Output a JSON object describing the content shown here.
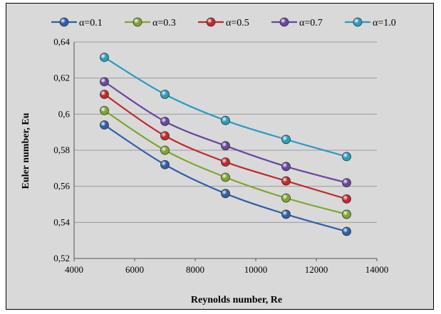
{
  "chart_data": {
    "type": "line",
    "xlabel": "Reynolds number, Re",
    "ylabel": "Euler number, Eu",
    "xlim": [
      4000,
      14000
    ],
    "ylim": [
      0.52,
      0.64
    ],
    "xticks": [
      "4000",
      "6000",
      "8000",
      "10000",
      "12000",
      "14000"
    ],
    "yticks": [
      "0,52",
      "0,54",
      "0,56",
      "0,58",
      "0,6",
      "0,62",
      "0,64"
    ],
    "grid": true,
    "legend_position": "top",
    "x": [
      5000,
      7000,
      9000,
      11000,
      13000
    ],
    "series": [
      {
        "name": "α=0.1",
        "color": "#2e5fa8",
        "values": [
          0.594,
          0.572,
          0.556,
          0.5445,
          0.535
        ]
      },
      {
        "name": "α=0.3",
        "color": "#7fa62c",
        "values": [
          0.602,
          0.58,
          0.565,
          0.5535,
          0.5445
        ]
      },
      {
        "name": "α=0.5",
        "color": "#c0282e",
        "values": [
          0.611,
          0.588,
          0.5735,
          0.563,
          0.553
        ]
      },
      {
        "name": "α=0.7",
        "color": "#6a44a0",
        "values": [
          0.618,
          0.596,
          0.5825,
          0.571,
          0.562
        ]
      },
      {
        "name": "α=1.0",
        "color": "#2a9cbf",
        "values": [
          0.6315,
          0.611,
          0.5965,
          0.586,
          0.5765
        ]
      }
    ]
  }
}
